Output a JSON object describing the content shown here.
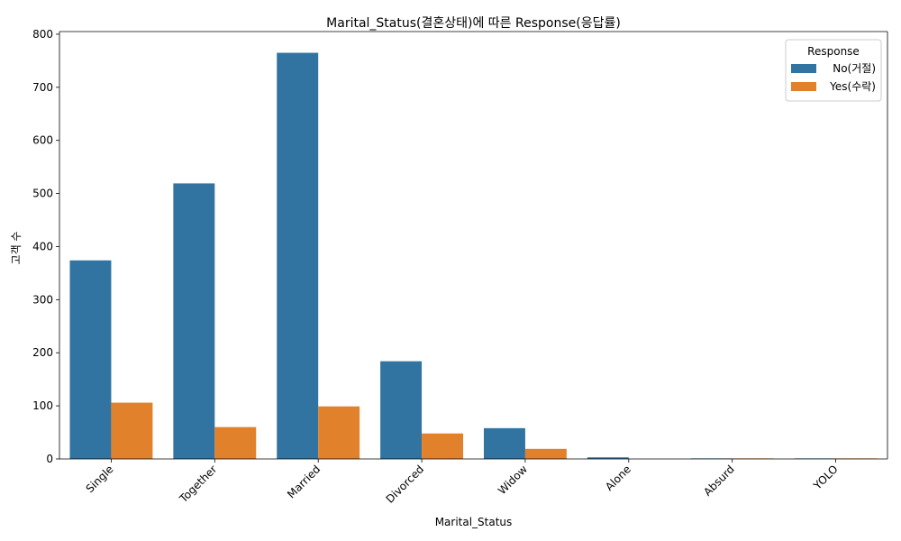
{
  "chart_data": {
    "type": "bar",
    "title": "Marital_Status(결혼상태)에 따른 Response(응답률)",
    "xlabel": "Marital_Status",
    "ylabel": "고객 수",
    "categories": [
      "Single",
      "Together",
      "Married",
      "Divorced",
      "Widow",
      "Alone",
      "Absurd",
      "YOLO"
    ],
    "series": [
      {
        "name": "No(거절)",
        "values": [
          374,
          519,
          765,
          184,
          58,
          3,
          1,
          1
        ],
        "color": "#3274a1"
      },
      {
        "name": "Yes(수락)",
        "values": [
          106,
          60,
          99,
          48,
          19,
          0,
          1,
          1
        ],
        "color": "#e1812c"
      }
    ],
    "yticks": [
      0,
      100,
      200,
      300,
      400,
      500,
      600,
      700,
      800
    ],
    "ylim": [
      0,
      805
    ],
    "grid": false,
    "legend": {
      "title": "Response",
      "placement": "top-right"
    }
  }
}
